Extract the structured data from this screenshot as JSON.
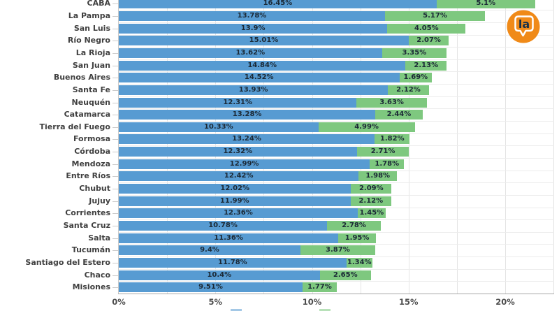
{
  "logo": {
    "text": "la",
    "background_color": "#F08A18",
    "text_color": "#17304A"
  },
  "styles": {
    "blue": "#579BD2",
    "green": "#7EC87F",
    "grid_color": "#E4E4E4",
    "row_line_color": "#ECECEC",
    "axis_color": "#A8A8A8",
    "category_label_color": "#404040",
    "value_text_color": "#1B2936"
  },
  "chart_data": {
    "type": "bar",
    "orientation": "horizontal",
    "stacked": true,
    "categories": [
      "CABA",
      "La Pampa",
      "San Luis",
      "Río Negro",
      "La Rioja",
      "San Juan",
      "Buenos Aires",
      "Santa Fe",
      "Neuquén",
      "Catamarca",
      "Tierra del Fuego",
      "Formosa",
      "Córdoba",
      "Mendoza",
      "Entre Ríos",
      "Chubut",
      "Jujuy",
      "Corrientes",
      "Santa Cruz",
      "Salta",
      "Tucumán",
      "Santiago del Estero",
      "Chaco",
      "Misiones"
    ],
    "series": [
      {
        "name": "blue_segment",
        "color": "#579BD2",
        "values": [
          16.45,
          13.78,
          13.9,
          15.01,
          13.62,
          14.84,
          14.52,
          13.93,
          12.31,
          13.28,
          10.33,
          13.24,
          12.32,
          12.99,
          12.42,
          12.02,
          11.99,
          12.36,
          10.78,
          11.36,
          9.4,
          11.78,
          10.4,
          9.51
        ],
        "labels": [
          "16.45%",
          "13.78%",
          "13.9%",
          "15.01%",
          "13.62%",
          "14.84%",
          "14.52%",
          "13.93%",
          "12.31%",
          "13.28%",
          "10.33%",
          "13.24%",
          "12.32%",
          "12.99%",
          "12.42%",
          "12.02%",
          "11.99%",
          "12.36%",
          "10.78%",
          "11.36%",
          "9.4%",
          "11.78%",
          "10.4%",
          "9.51%"
        ]
      },
      {
        "name": "green_segment",
        "color": "#7EC87F",
        "values": [
          5.1,
          5.17,
          4.05,
          2.07,
          3.35,
          2.13,
          1.69,
          2.12,
          3.63,
          2.44,
          4.99,
          1.82,
          2.71,
          1.78,
          1.98,
          2.09,
          2.12,
          1.45,
          2.78,
          1.95,
          3.87,
          1.34,
          2.65,
          1.77
        ],
        "labels": [
          "5.1%",
          "5.17%",
          "4.05%",
          "2.07%",
          "3.35%",
          "2.13%",
          "1.69%",
          "2.12%",
          "3.63%",
          "2.44%",
          "4.99%",
          "1.82%",
          "2.71%",
          "1.78%",
          "1.98%",
          "2.09%",
          "2.12%",
          "1.45%",
          "2.78%",
          "1.95%",
          "3.87%",
          "1.34%",
          "2.65%",
          "1.77%"
        ]
      }
    ],
    "x_axis": {
      "tick_labels": [
        "0%",
        "5%",
        "10%",
        "15%",
        "20%"
      ],
      "tick_values": [
        0,
        5,
        10,
        15,
        20
      ],
      "min": 0,
      "max": 22.5,
      "grid_step": 2.5
    },
    "y_axis": {
      "note": "top category row (CABA) partially cut off at top edge"
    },
    "legend": {
      "position": "bottom, cut off by image edge",
      "swatch_colors": [
        "#579BD2",
        "#7EC87F"
      ]
    },
    "grid": "vertical lines every 2.5%, horizontal lines at row boundaries"
  }
}
